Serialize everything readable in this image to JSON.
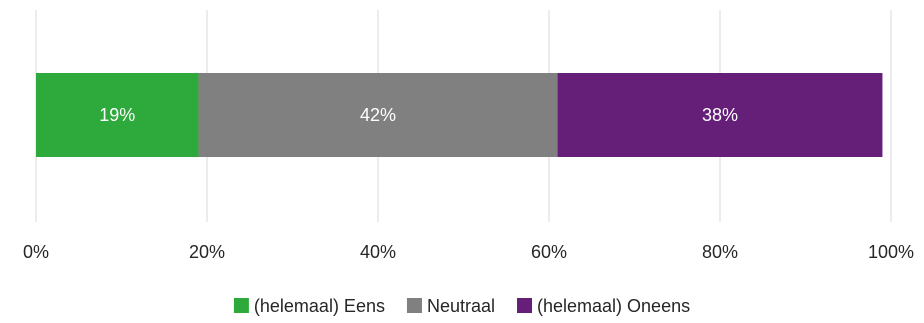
{
  "chart_data": {
    "type": "bar",
    "orientation": "horizontal",
    "stacked": true,
    "percent_stacked": true,
    "categories": [
      ""
    ],
    "series": [
      {
        "name": "(helemaal) Eens",
        "values": [
          19
        ],
        "color": "#2EAA3C",
        "label": "19%"
      },
      {
        "name": "Neutraal",
        "values": [
          42
        ],
        "color": "#808080",
        "label": "42%"
      },
      {
        "name": "(helemaal) Oneens",
        "values": [
          38
        ],
        "color": "#651F78",
        "label": "38%"
      }
    ],
    "xlim": [
      0,
      100
    ],
    "x_ticks": [
      0,
      20,
      40,
      60,
      80,
      100
    ],
    "x_tick_labels": [
      "0%",
      "20%",
      "40%",
      "60%",
      "80%",
      "100%"
    ],
    "grid": true,
    "legend_position": "bottom",
    "title": "",
    "xlabel": "",
    "ylabel": ""
  }
}
